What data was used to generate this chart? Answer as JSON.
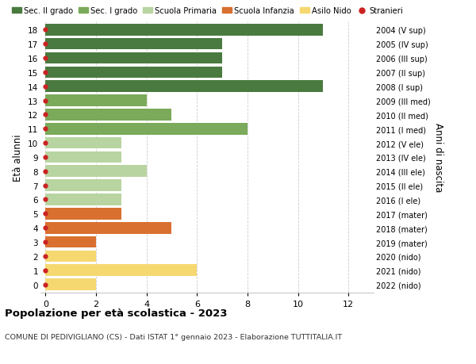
{
  "ages": [
    18,
    17,
    16,
    15,
    14,
    13,
    12,
    11,
    10,
    9,
    8,
    7,
    6,
    5,
    4,
    3,
    2,
    1,
    0
  ],
  "years_labels": [
    "2004 (V sup)",
    "2005 (IV sup)",
    "2006 (III sup)",
    "2007 (II sup)",
    "2008 (I sup)",
    "2009 (III med)",
    "2010 (II med)",
    "2011 (I med)",
    "2012 (V ele)",
    "2013 (IV ele)",
    "2014 (III ele)",
    "2015 (II ele)",
    "2016 (I ele)",
    "2017 (mater)",
    "2018 (mater)",
    "2019 (mater)",
    "2020 (nido)",
    "2021 (nido)",
    "2022 (nido)"
  ],
  "values": [
    11,
    7,
    7,
    7,
    11,
    4,
    5,
    8,
    3,
    3,
    4,
    3,
    3,
    3,
    5,
    2,
    2,
    6,
    2
  ],
  "bar_colors": [
    "#4a7a3f",
    "#4a7a3f",
    "#4a7a3f",
    "#4a7a3f",
    "#4a7a3f",
    "#7aaa5a",
    "#7aaa5a",
    "#7aaa5a",
    "#b8d4a0",
    "#b8d4a0",
    "#b8d4a0",
    "#b8d4a0",
    "#b8d4a0",
    "#d97030",
    "#d97030",
    "#d97030",
    "#f5d870",
    "#f5d870",
    "#f5d870"
  ],
  "legend_labels": [
    "Sec. II grado",
    "Sec. I grado",
    "Scuola Primaria",
    "Scuola Infanzia",
    "Asilo Nido",
    "Stranieri"
  ],
  "legend_colors": [
    "#4a7a3f",
    "#7aaa5a",
    "#b8d4a0",
    "#d97030",
    "#f5d870",
    "#cc2222"
  ],
  "stranger_dot_color": "#cc2222",
  "title": "Popolazione per età scolastica - 2023",
  "subtitle": "COMUNE DI PEDIVIGLIANO (CS) - Dati ISTAT 1° gennaio 2023 - Elaborazione TUTTITALIA.IT",
  "ylabel_left": "Età alunni",
  "ylabel_right": "Anni di nascita",
  "xlim": [
    -0.2,
    13
  ],
  "ylim": [
    -0.6,
    18.6
  ],
  "bg_color": "#ffffff",
  "grid_color": "#cccccc",
  "bar_height": 0.82
}
